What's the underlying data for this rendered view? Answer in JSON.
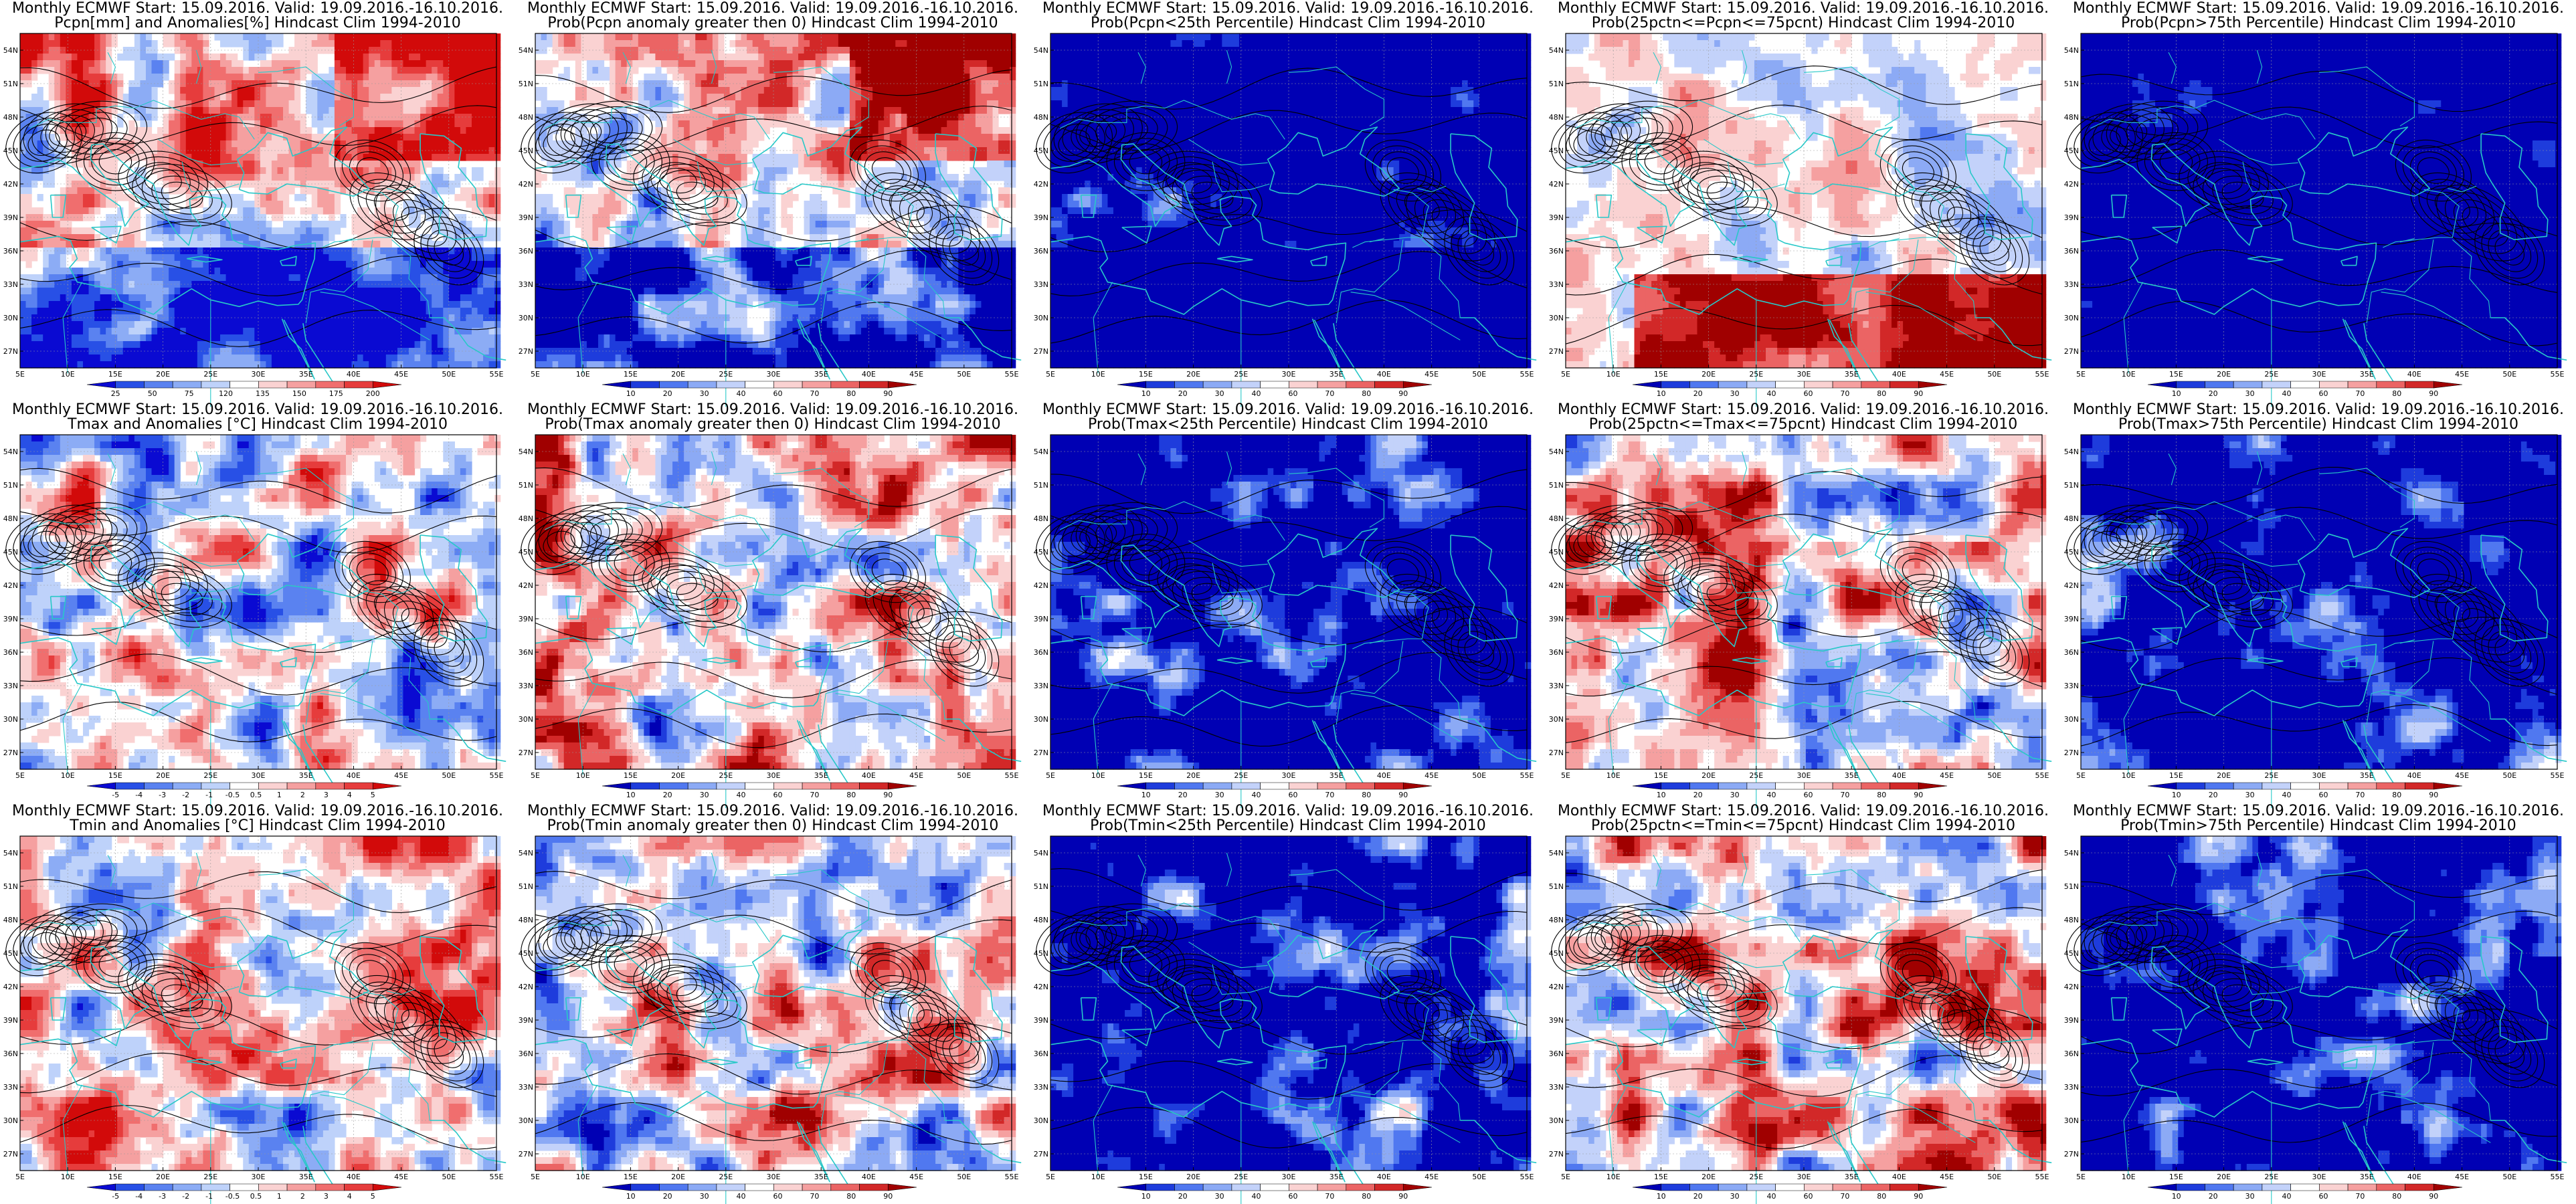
{
  "title_line1": "Monthly ECMWF Start: 15.09.2016. Valid: 19.09.2016.-16.10.2016.",
  "lon_labels": [
    "5E",
    "10E",
    "15E",
    "20E",
    "25E",
    "30E",
    "35E",
    "40E",
    "45E",
    "50E",
    "55E"
  ],
  "lat_labels": [
    "54N",
    "51N",
    "48N",
    "45N",
    "42N",
    "39N",
    "36N",
    "33N",
    "30N",
    "27N"
  ],
  "anomaly_palette": [
    "#0a0ad2",
    "#2850e6",
    "#5a82f0",
    "#8cacf5",
    "#bed2fa",
    "#ffffff",
    "#fad2d2",
    "#f5a0a0",
    "#f06e6e",
    "#e63c3c",
    "#d20a0a"
  ],
  "prob_palette": [
    "#0000b4",
    "#1e3cdc",
    "#5078f0",
    "#8caaf5",
    "#c3d2fa",
    "#ffffff",
    "#fad2d2",
    "#f5a0a0",
    "#eb6464",
    "#d22828",
    "#a00000"
  ],
  "colors": {
    "coast": "#28c8c8",
    "contour": "#000000",
    "grid": "#999999"
  },
  "panels": [
    {
      "title2": "Pcpn[mm] and Anomalies[%] Hindcast Clim 1994-2010",
      "palette": "anomaly",
      "colorbar_labels": [
        "25",
        "50",
        "75",
        "120",
        "135",
        "150",
        "175",
        "200"
      ],
      "bias": 0.0,
      "style": "pcpn"
    },
    {
      "title2": "Prob(Pcpn anomaly greater then 0) Hindcast Clim 1994-2010",
      "palette": "prob",
      "colorbar_labels": [
        "10",
        "20",
        "30",
        "40",
        "60",
        "70",
        "80",
        "90"
      ],
      "bias": 0.0,
      "style": "pcpn"
    },
    {
      "title2": "Prob(Pcpn<25th Percentile) Hindcast Clim 1994-2010",
      "palette": "prob",
      "colorbar_labels": [
        "10",
        "20",
        "30",
        "40",
        "60",
        "70",
        "80",
        "90"
      ],
      "bias": -0.55,
      "style": "low"
    },
    {
      "title2": "Prob(25pctn<=Pcpn<=75pcnt) Hindcast Clim 1994-2010",
      "palette": "prob",
      "colorbar_labels": [
        "10",
        "20",
        "30",
        "40",
        "60",
        "70",
        "80",
        "90"
      ],
      "bias": 0.0,
      "style": "mid"
    },
    {
      "title2": "Prob(Pcpn>75th Percentile) Hindcast Clim 1994-2010",
      "palette": "prob",
      "colorbar_labels": [
        "10",
        "20",
        "30",
        "40",
        "60",
        "70",
        "80",
        "90"
      ],
      "bias": -0.5,
      "style": "high"
    },
    {
      "title2": "Tmax and Anomalies [°C] Hindcast Clim 1994-2010",
      "palette": "anomaly",
      "colorbar_labels": [
        "-5",
        "-4",
        "-3",
        "-2",
        "-1",
        "-0.5",
        "0.5",
        "1",
        "2",
        "3",
        "4",
        "5"
      ],
      "bias": 0.0,
      "style": "temp"
    },
    {
      "title2": "Prob(Tmax anomaly greater then 0) Hindcast Clim 1994-2010",
      "palette": "prob",
      "colorbar_labels": [
        "10",
        "20",
        "30",
        "40",
        "60",
        "70",
        "80",
        "90"
      ],
      "bias": 0.1,
      "style": "temp"
    },
    {
      "title2": "Prob(Tmax<25th Percentile) Hindcast Clim 1994-2010",
      "palette": "prob",
      "colorbar_labels": [
        "10",
        "20",
        "30",
        "40",
        "60",
        "70",
        "80",
        "90"
      ],
      "bias": -0.55,
      "style": "temp"
    },
    {
      "title2": "Prob(25pctn<=Tmax<=75pcnt) Hindcast Clim 1994-2010",
      "palette": "prob",
      "colorbar_labels": [
        "10",
        "20",
        "30",
        "40",
        "60",
        "70",
        "80",
        "90"
      ],
      "bias": 0.05,
      "style": "temp"
    },
    {
      "title2": "Prob(Tmax>75th Percentile) Hindcast Clim 1994-2010",
      "palette": "prob",
      "colorbar_labels": [
        "10",
        "20",
        "30",
        "40",
        "60",
        "70",
        "80",
        "90"
      ],
      "bias": -0.55,
      "style": "temp"
    },
    {
      "title2": "Tmin and Anomalies [°C] Hindcast Clim 1994-2010",
      "palette": "anomaly",
      "colorbar_labels": [
        "-5",
        "-4",
        "-3",
        "-2",
        "-1",
        "-0.5",
        "0.5",
        "1",
        "2",
        "3",
        "4",
        "5"
      ],
      "bias": 0.05,
      "style": "temp"
    },
    {
      "title2": "Prob(Tmin anomaly greater then 0) Hindcast Clim 1994-2010",
      "palette": "prob",
      "colorbar_labels": [
        "10",
        "20",
        "30",
        "40",
        "60",
        "70",
        "80",
        "90"
      ],
      "bias": 0.05,
      "style": "temp"
    },
    {
      "title2": "Prob(Tmin<25th Percentile) Hindcast Clim 1994-2010",
      "palette": "prob",
      "colorbar_labels": [
        "10",
        "20",
        "30",
        "40",
        "60",
        "70",
        "80",
        "90"
      ],
      "bias": -0.5,
      "style": "temp"
    },
    {
      "title2": "Prob(25pctn<=Tmin<=75pcnt) Hindcast Clim 1994-2010",
      "palette": "prob",
      "colorbar_labels": [
        "10",
        "20",
        "30",
        "40",
        "60",
        "70",
        "80",
        "90"
      ],
      "bias": 0.1,
      "style": "temp"
    },
    {
      "title2": "Prob(Tmin>75th Percentile) Hindcast Clim 1994-2010",
      "palette": "prob",
      "colorbar_labels": [
        "10",
        "20",
        "30",
        "40",
        "60",
        "70",
        "80",
        "90"
      ],
      "bias": -0.55,
      "style": "temp"
    }
  ]
}
